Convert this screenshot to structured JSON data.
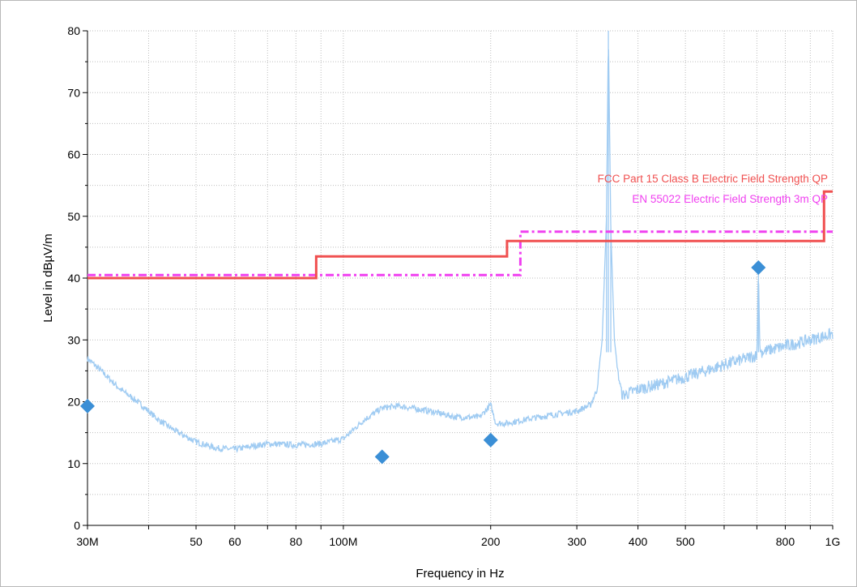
{
  "chart_data": {
    "type": "line",
    "xlabel": "Frequency in Hz",
    "ylabel": "Level in dBµV/m",
    "xscale": "log",
    "xlim": [
      30000000,
      1000000000
    ],
    "ylim": [
      0,
      80
    ],
    "grid": true,
    "x_tick_labels": [
      {
        "value": 30000000,
        "label": "30M"
      },
      {
        "value": 50000000,
        "label": "50"
      },
      {
        "value": 60000000,
        "label": "60"
      },
      {
        "value": 80000000,
        "label": "80"
      },
      {
        "value": 100000000,
        "label": "100M"
      },
      {
        "value": 200000000,
        "label": "200"
      },
      {
        "value": 300000000,
        "label": "300"
      },
      {
        "value": 400000000,
        "label": "400"
      },
      {
        "value": 500000000,
        "label": "500"
      },
      {
        "value": 800000000,
        "label": "800"
      },
      {
        "value": 1000000000,
        "label": "1G"
      }
    ],
    "y_tick_labels": [
      {
        "value": 0,
        "label": "0"
      },
      {
        "value": 10,
        "label": "10"
      },
      {
        "value": 20,
        "label": "20"
      },
      {
        "value": 30,
        "label": "30"
      },
      {
        "value": 40,
        "label": "40"
      },
      {
        "value": 50,
        "label": "50"
      },
      {
        "value": 60,
        "label": "60"
      },
      {
        "value": 70,
        "label": "70"
      },
      {
        "value": 80,
        "label": "80"
      }
    ],
    "series": [
      {
        "name": "FCC Part 15 Class B Electric Field Strength QP",
        "color": "#f05050",
        "style": "solid-step",
        "points": [
          [
            30000000,
            40.0
          ],
          [
            88000000,
            40.0
          ],
          [
            88000000,
            43.5
          ],
          [
            216000000,
            43.5
          ],
          [
            216000000,
            46.0
          ],
          [
            960000000,
            46.0
          ],
          [
            960000000,
            54.0
          ],
          [
            1000000000,
            54.0
          ]
        ]
      },
      {
        "name": "EN 55022 Electric Field Strength 3m QP",
        "color": "#f040f0",
        "style": "dash-dot-step",
        "points": [
          [
            30000000,
            40.5
          ],
          [
            230000000,
            40.5
          ],
          [
            230000000,
            47.5
          ],
          [
            1000000000,
            47.5
          ]
        ]
      },
      {
        "color": "#9fcbf2",
        "style": "trace",
        "points": [
          [
            30000000,
            27.0
          ],
          [
            32000000,
            25.0
          ],
          [
            35000000,
            22.0
          ],
          [
            38000000,
            20.0
          ],
          [
            42000000,
            17.0
          ],
          [
            46000000,
            15.0
          ],
          [
            50000000,
            13.5
          ],
          [
            55000000,
            12.5
          ],
          [
            60000000,
            12.3
          ],
          [
            65000000,
            12.8
          ],
          [
            70000000,
            13.2
          ],
          [
            80000000,
            13.0
          ],
          [
            90000000,
            13.2
          ],
          [
            100000000,
            14.0
          ],
          [
            110000000,
            17.0
          ],
          [
            120000000,
            19.0
          ],
          [
            130000000,
            19.3
          ],
          [
            150000000,
            18.5
          ],
          [
            170000000,
            17.5
          ],
          [
            190000000,
            17.5
          ],
          [
            200000000,
            19.5
          ],
          [
            205000000,
            16.5
          ],
          [
            215000000,
            16.5
          ],
          [
            250000000,
            17.5
          ],
          [
            300000000,
            18.5
          ],
          [
            320000000,
            19.5
          ],
          [
            330000000,
            22.0
          ],
          [
            338000000,
            30.0
          ],
          [
            345000000,
            50.0
          ],
          [
            348000000,
            80.0
          ],
          [
            352000000,
            48.0
          ],
          [
            358000000,
            30.0
          ],
          [
            365000000,
            24.0
          ],
          [
            372000000,
            21.0
          ],
          [
            400000000,
            22.0
          ],
          [
            450000000,
            23.0
          ],
          [
            500000000,
            24.0
          ],
          [
            550000000,
            25.0
          ],
          [
            600000000,
            26.0
          ],
          [
            700000000,
            27.5
          ],
          [
            705000000,
            41.7
          ],
          [
            710000000,
            28.0
          ],
          [
            800000000,
            29.0
          ],
          [
            900000000,
            30.0
          ],
          [
            1000000000,
            31.0
          ]
        ]
      },
      {
        "color": "#3b8fd6",
        "style": "markers",
        "points": [
          [
            30000000,
            19.3
          ],
          [
            120000000,
            11.1
          ],
          [
            200000000,
            13.8
          ],
          [
            705000000,
            41.7
          ]
        ]
      }
    ]
  }
}
